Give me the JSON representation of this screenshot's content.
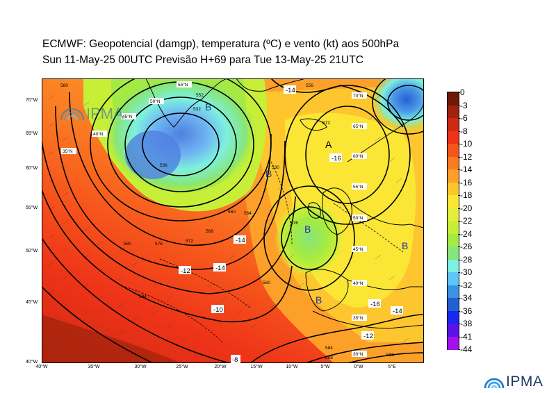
{
  "header": {
    "title_line1": "ECMWF:  Geopotencial (damgp), temperatura (ºC) e vento (kt) aos 500hPa",
    "title_line2": "Sun 11-May-25 00UTC Previsão H+69 para Tue 13-May-25 21UTC"
  },
  "map": {
    "lat_labels": [
      "70°W",
      "65°W",
      "60°W",
      "55°W",
      "50°W",
      "45°W",
      "40°W"
    ],
    "lon_labels": [
      "40°W",
      "35°W",
      "30°W",
      "25°W",
      "20°W",
      "15°W",
      "10°W",
      "5°W",
      "0°W",
      "5°E"
    ],
    "inner_lat_labels": [
      "55°N",
      "50°N",
      "45°N",
      "40°N",
      "35°N",
      "30°N",
      "70°N",
      "65°N",
      "60°N",
      "55°N",
      "50°N",
      "45°N",
      "40°N",
      "35°N",
      "30°N"
    ],
    "pressure_centers": [
      "B",
      "B",
      "B",
      "B",
      "B",
      "A"
    ],
    "temperature_labels": [
      "-12",
      "-14",
      "-14",
      "-16",
      "-16",
      "-12",
      "-10",
      "-14",
      "-8",
      "-14",
      "-16",
      "-12"
    ],
    "geopotential_labels": [
      "580",
      "576",
      "572",
      "568",
      "564",
      "560",
      "556",
      "552",
      "536",
      "532",
      "530",
      "584",
      "580",
      "588",
      "572",
      "576",
      "580",
      "584",
      "588"
    ],
    "watermark": "IPMA"
  },
  "colorbar": {
    "labels": [
      "0",
      "-3",
      "-6",
      "-8",
      "-10",
      "-12",
      "-14",
      "-16",
      "-18",
      "-20",
      "-22",
      "-24",
      "-26",
      "-28",
      "-30",
      "-32",
      "-34",
      "-36",
      "-38",
      "-41",
      "-44"
    ],
    "colors": [
      "#6e1a06",
      "#a0220c",
      "#cc2a12",
      "#ee3318",
      "#f6541c",
      "#fa7a22",
      "#fda02a",
      "#fec62e",
      "#fbe636",
      "#e3ee3a",
      "#c7ef38",
      "#a4ea42",
      "#86e67a",
      "#7cf0e2",
      "#5dc6f6",
      "#3b92e6",
      "#2160d2",
      "#1828f0",
      "#5a12e8",
      "#a410ec"
    ]
  },
  "brand": {
    "name": "IPMA"
  }
}
